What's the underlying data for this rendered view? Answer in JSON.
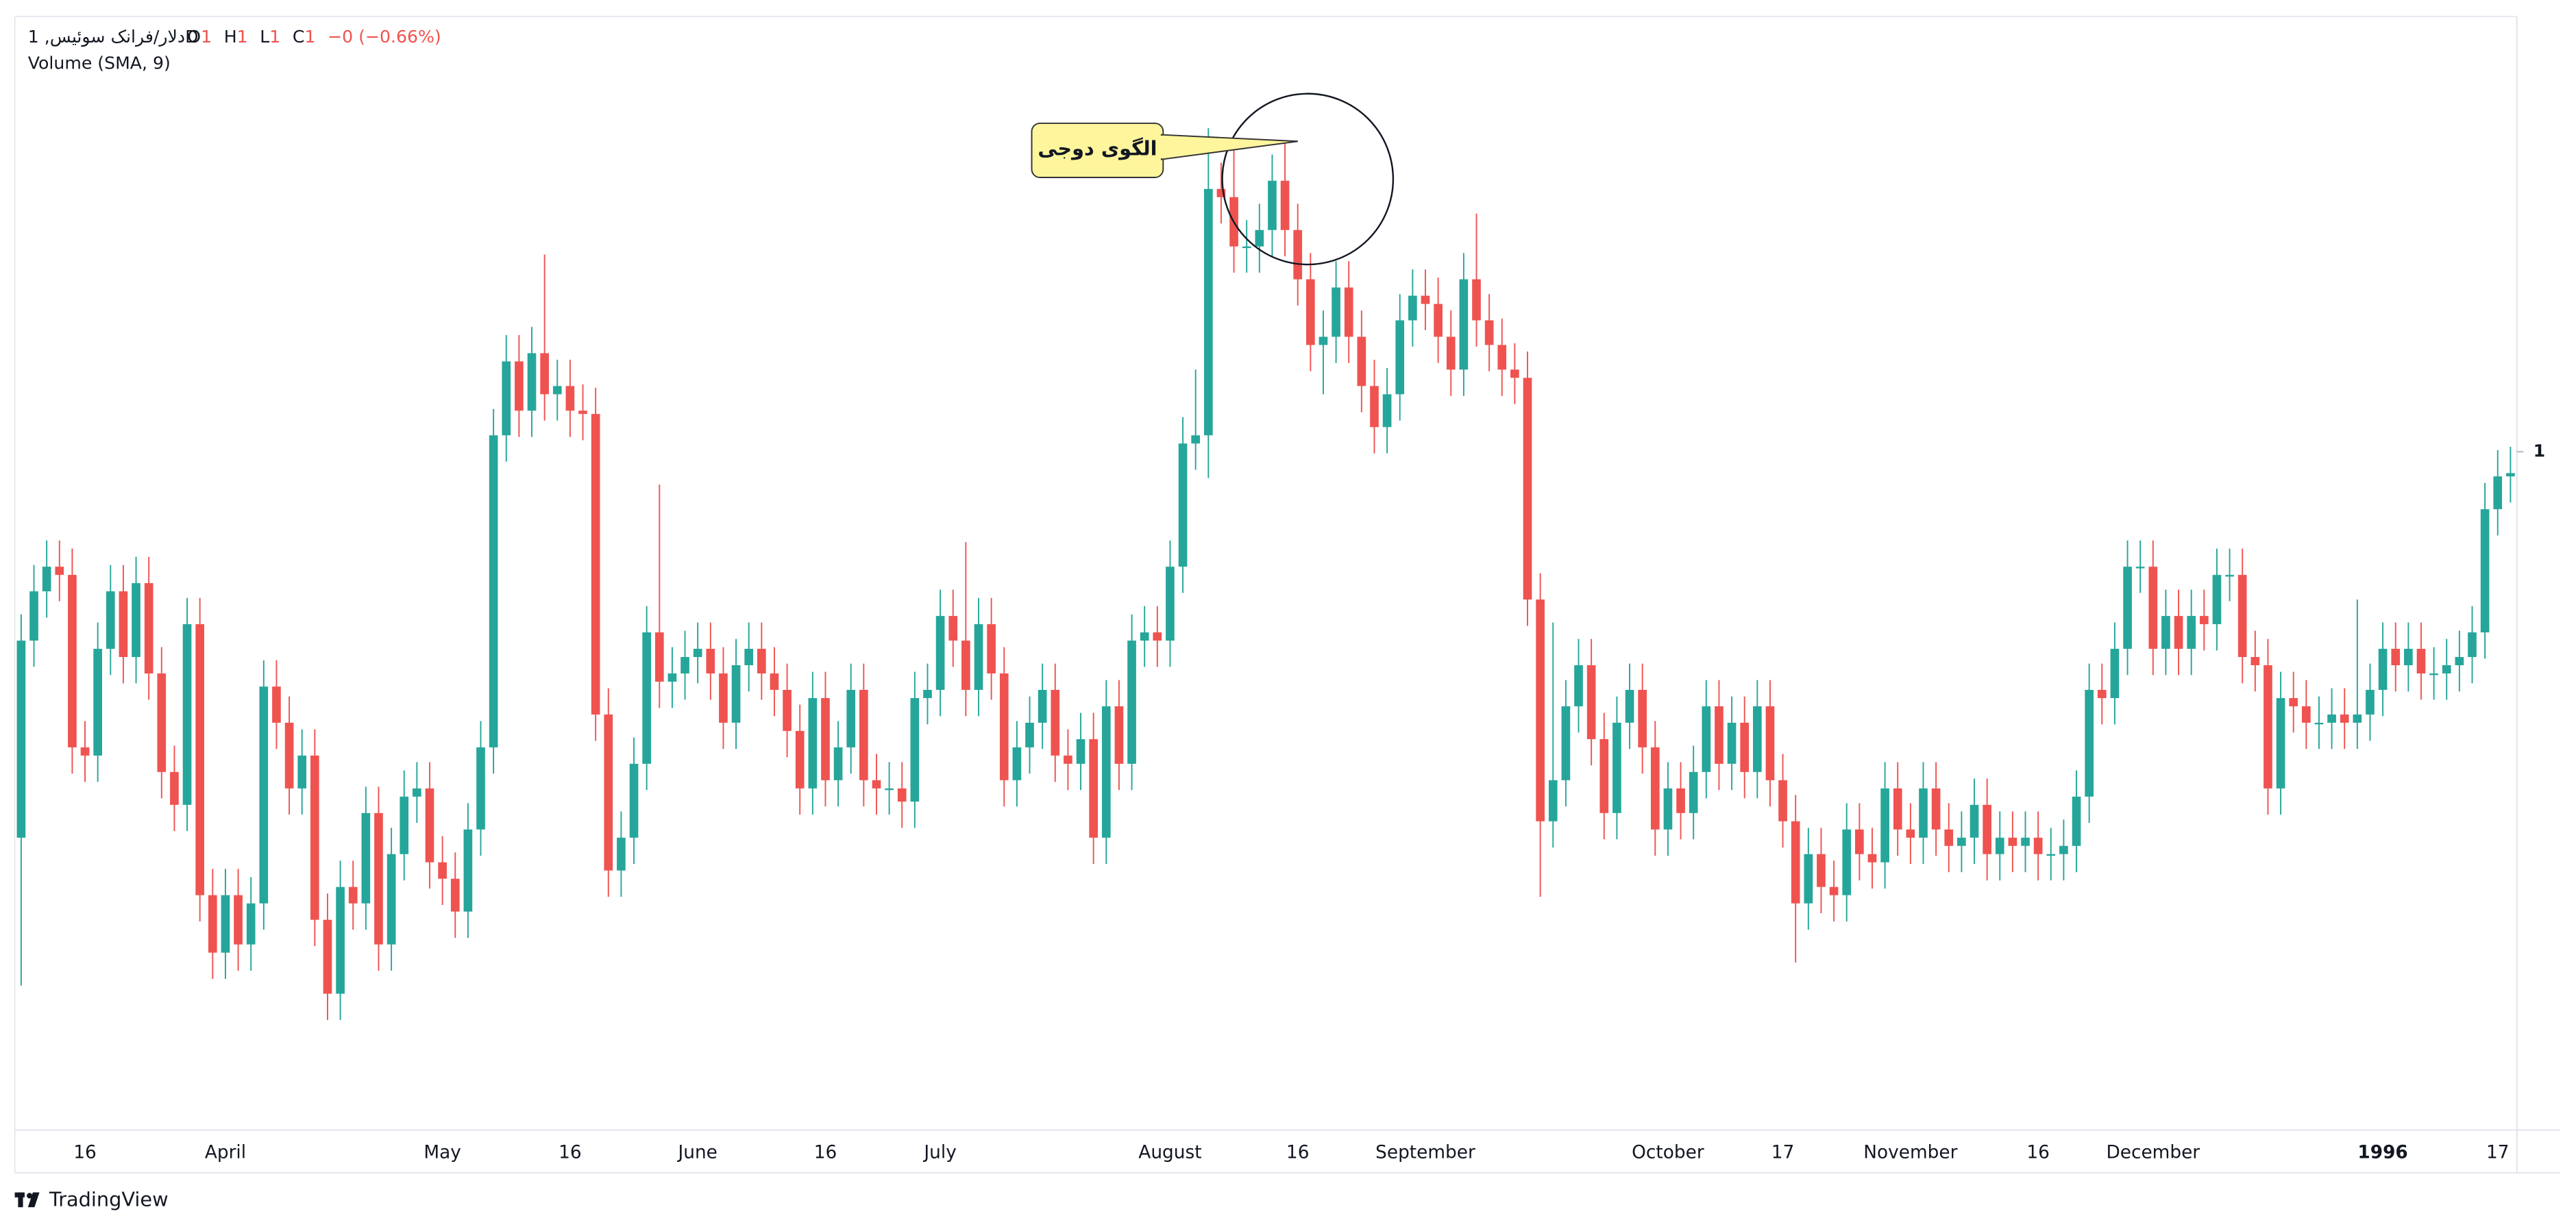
{
  "chart_data": {
    "type": "candlestick",
    "symbol": "دلار/فرانک سوئیس, 1D",
    "ohlc_legend": [
      {
        "key": "O",
        "value": "1"
      },
      {
        "key": "H",
        "value": "1"
      },
      {
        "key": "L",
        "value": "1"
      },
      {
        "key": "C",
        "value": "1"
      }
    ],
    "change": "−0 (−0.66%)",
    "indicator": "Volume (SMA, 9)",
    "annotation": "الگوی دوجی",
    "brand": "TradingView",
    "up_color": "#26a69a",
    "down_color": "#ef5350",
    "ylim": [
      0.7935,
      1.1325
    ],
    "yticks": [
      {
        "value": 1.0,
        "label": "1"
      }
    ],
    "categories": [
      null,
      null,
      null,
      null,
      null,
      "16",
      null,
      null,
      null,
      null,
      null,
      null,
      null,
      null,
      null,
      null,
      "April",
      null,
      null,
      null,
      null,
      null,
      null,
      null,
      null,
      null,
      null,
      null,
      null,
      null,
      null,
      null,
      null,
      "May",
      null,
      null,
      null,
      null,
      null,
      null,
      null,
      null,
      null,
      "16",
      null,
      null,
      null,
      null,
      null,
      null,
      null,
      null,
      null,
      "June",
      null,
      null,
      null,
      null,
      null,
      null,
      null,
      null,
      null,
      "16",
      null,
      null,
      null,
      null,
      null,
      null,
      null,
      null,
      "July",
      null,
      null,
      null,
      null,
      null,
      null,
      null,
      null,
      null,
      null,
      null,
      null,
      null,
      null,
      null,
      null,
      null,
      "August",
      null,
      null,
      null,
      null,
      null,
      null,
      null,
      null,
      null,
      "16",
      null,
      null,
      null,
      null,
      null,
      null,
      null,
      null,
      null,
      "September",
      null,
      null,
      null,
      null,
      null,
      null,
      null,
      null,
      null,
      null,
      null,
      null,
      null,
      null,
      null,
      null,
      null,
      null,
      "October",
      null,
      null,
      null,
      null,
      null,
      null,
      null,
      null,
      "17",
      null,
      null,
      null,
      null,
      null,
      null,
      null,
      null,
      null,
      "November",
      null,
      null,
      null,
      null,
      null,
      null,
      null,
      null,
      null,
      "16",
      null,
      null,
      null,
      null,
      null,
      null,
      null,
      null,
      "December",
      null,
      null,
      null,
      null,
      null,
      null,
      null,
      null,
      null,
      null,
      null,
      null,
      null,
      null,
      null,
      null,
      null,
      "1996",
      null,
      null,
      null,
      null,
      null,
      null,
      null,
      null,
      "17",
      null
    ],
    "open": [
      0.8825,
      0.9425,
      0.9575,
      0.965,
      0.9625,
      0.91,
      0.9075,
      0.94,
      0.9575,
      0.9375,
      0.96,
      0.9325,
      0.9025,
      0.8925,
      0.9475,
      0.865,
      0.8475,
      0.865,
      0.85,
      0.8625,
      0.9285,
      0.9175,
      0.8975,
      0.9075,
      0.8575,
      0.835,
      0.8675,
      0.8625,
      0.89,
      0.85,
      0.8775,
      0.895,
      0.8975,
      0.875,
      0.87,
      0.86,
      0.885,
      0.91,
      1.005,
      1.0275,
      1.0125,
      1.03,
      1.0175,
      1.02,
      1.0125,
      1.0115,
      0.92,
      0.8725,
      0.8825,
      0.905,
      0.945,
      0.93,
      0.9325,
      0.9375,
      0.94,
      0.9325,
      0.9175,
      0.935,
      0.94,
      0.9325,
      0.9275,
      0.915,
      0.8975,
      0.925,
      0.9,
      0.91,
      0.9275,
      0.9,
      0.8975,
      0.8975,
      0.8935,
      0.925,
      0.9275,
      0.95,
      0.9425,
      0.9275,
      0.9475,
      0.9325,
      0.9,
      0.91,
      0.9175,
      0.9275,
      0.9075,
      0.905,
      0.9125,
      0.8825,
      0.9225,
      0.905,
      0.9425,
      0.945,
      0.9425,
      0.965,
      1.0025,
      1.005,
      1.08,
      1.0775,
      1.0625,
      1.0625,
      1.0675,
      1.0825,
      1.0675,
      1.0525,
      1.0325,
      1.035,
      1.05,
      1.035,
      1.02,
      1.0075,
      1.0175,
      1.04,
      1.0475,
      1.045,
      1.035,
      1.025,
      1.0525,
      1.04,
      1.0325,
      1.025,
      1.0225,
      0.955,
      0.8875,
      0.9,
      0.9225,
      0.935,
      0.9125,
      0.89,
      0.9175,
      0.9275,
      0.91,
      0.885,
      0.8975,
      0.89,
      0.9025,
      0.9225,
      0.905,
      0.9175,
      0.9025,
      0.9225,
      0.9,
      0.8875,
      0.8625,
      0.8775,
      0.8675,
      0.865,
      0.885,
      0.8775,
      0.875,
      0.8975,
      0.885,
      0.8825,
      0.8975,
      0.885,
      0.88,
      0.8825,
      0.8925,
      0.8775,
      0.8825,
      0.88,
      0.8825,
      0.8775,
      0.8775,
      0.88,
      0.895,
      0.9275,
      0.925,
      0.94,
      0.965,
      0.965,
      0.94,
      0.95,
      0.94,
      0.95,
      0.9475,
      0.9625,
      0.9625,
      0.9375,
      0.935,
      0.8975,
      0.925,
      0.9225,
      0.9175,
      0.9175,
      0.92,
      0.9175,
      0.92,
      0.9275,
      0.94,
      0.935,
      0.94,
      0.9325,
      0.9325,
      0.935,
      0.9375,
      0.945,
      0.9825,
      0.9925
    ],
    "high": [
      0.9505,
      0.9655,
      0.973,
      0.973,
      0.9705,
      0.918,
      0.948,
      0.9655,
      0.9655,
      0.968,
      0.968,
      0.9405,
      0.9105,
      0.9555,
      0.9555,
      0.873,
      0.873,
      0.873,
      0.8705,
      0.9365,
      0.9365,
      0.9255,
      0.9155,
      0.9155,
      0.8655,
      0.8755,
      0.8755,
      0.898,
      0.898,
      0.8855,
      0.903,
      0.9055,
      0.9055,
      0.883,
      0.878,
      0.893,
      0.918,
      1.013,
      1.0355,
      1.0355,
      1.038,
      1.06,
      1.028,
      1.028,
      1.0205,
      1.0195,
      0.928,
      0.8905,
      0.913,
      0.953,
      0.99,
      0.9405,
      0.9455,
      0.948,
      0.948,
      0.9405,
      0.943,
      0.948,
      0.948,
      0.9405,
      0.9355,
      0.923,
      0.933,
      0.933,
      0.918,
      0.9355,
      0.9355,
      0.908,
      0.9055,
      0.9055,
      0.933,
      0.9355,
      0.958,
      0.958,
      0.9725,
      0.9555,
      0.9555,
      0.9405,
      0.918,
      0.9255,
      0.9355,
      0.9355,
      0.9155,
      0.9205,
      0.9205,
      0.9305,
      0.9305,
      0.9505,
      0.953,
      0.953,
      0.973,
      1.0105,
      1.025,
      1.0985,
      1.088,
      1.0945,
      1.0705,
      1.0755,
      1.0905,
      1.0945,
      1.0755,
      1.0605,
      1.043,
      1.058,
      1.058,
      1.043,
      1.028,
      1.0255,
      1.048,
      1.0555,
      1.0555,
      1.053,
      1.043,
      1.0605,
      1.0725,
      1.048,
      1.0405,
      1.033,
      1.0305,
      0.963,
      0.948,
      0.9305,
      0.943,
      0.943,
      0.9205,
      0.9255,
      0.9355,
      0.9355,
      0.918,
      0.9055,
      0.9055,
      0.9105,
      0.9305,
      0.9305,
      0.9255,
      0.9255,
      0.9305,
      0.9305,
      0.908,
      0.8955,
      0.8855,
      0.8855,
      0.8755,
      0.893,
      0.893,
      0.8855,
      0.9055,
      0.9055,
      0.893,
      0.9055,
      0.9055,
      0.893,
      0.8905,
      0.9005,
      0.9005,
      0.8905,
      0.8905,
      0.8905,
      0.8905,
      0.8855,
      0.888,
      0.903,
      0.9355,
      0.9355,
      0.948,
      0.973,
      0.973,
      0.973,
      0.958,
      0.958,
      0.958,
      0.958,
      0.9705,
      0.9705,
      0.9705,
      0.9455,
      0.943,
      0.933,
      0.933,
      0.9305,
      0.9255,
      0.928,
      0.928,
      0.955,
      0.9355,
      0.948,
      0.948,
      0.948,
      0.948,
      0.9405,
      0.943,
      0.9455,
      0.953,
      0.9905,
      1.0005,
      1.0015
    ],
    "low": [
      0.8375,
      0.9345,
      0.9495,
      0.9545,
      0.902,
      0.8995,
      0.8995,
      0.932,
      0.9295,
      0.9295,
      0.9245,
      0.8945,
      0.8845,
      0.8845,
      0.857,
      0.8395,
      0.8395,
      0.842,
      0.842,
      0.8545,
      0.9095,
      0.8895,
      0.8895,
      0.8495,
      0.827,
      0.827,
      0.8545,
      0.8545,
      0.842,
      0.842,
      0.8695,
      0.887,
      0.867,
      0.862,
      0.852,
      0.852,
      0.877,
      0.902,
      0.997,
      1.0045,
      1.0045,
      1.0095,
      1.0095,
      1.0045,
      1.0035,
      0.912,
      0.8645,
      0.8645,
      0.8745,
      0.897,
      0.922,
      0.922,
      0.9245,
      0.9295,
      0.9245,
      0.9095,
      0.9095,
      0.927,
      0.9245,
      0.9195,
      0.907,
      0.8895,
      0.8895,
      0.892,
      0.892,
      0.902,
      0.892,
      0.8895,
      0.8895,
      0.8855,
      0.8855,
      0.917,
      0.9195,
      0.9345,
      0.9195,
      0.9195,
      0.9245,
      0.892,
      0.892,
      0.902,
      0.9095,
      0.8995,
      0.897,
      0.897,
      0.8745,
      0.8745,
      0.897,
      0.897,
      0.9345,
      0.9345,
      0.9345,
      0.957,
      0.9945,
      0.992,
      1.0695,
      1.0545,
      1.0545,
      1.0545,
      1.0595,
      1.0595,
      1.0445,
      1.0245,
      1.0175,
      1.027,
      1.027,
      1.012,
      0.9995,
      0.9995,
      1.0095,
      1.032,
      1.037,
      1.027,
      1.017,
      1.017,
      1.032,
      1.0245,
      1.017,
      1.0145,
      0.947,
      0.8645,
      0.8795,
      0.892,
      0.9145,
      0.9045,
      0.882,
      0.882,
      0.9095,
      0.902,
      0.877,
      0.877,
      0.882,
      0.882,
      0.8945,
      0.897,
      0.897,
      0.8945,
      0.8945,
      0.892,
      0.8795,
      0.8445,
      0.8545,
      0.8595,
      0.857,
      0.857,
      0.8695,
      0.867,
      0.867,
      0.877,
      0.8745,
      0.8745,
      0.877,
      0.872,
      0.872,
      0.8745,
      0.8695,
      0.8695,
      0.872,
      0.872,
      0.8695,
      0.8695,
      0.8695,
      0.872,
      0.887,
      0.917,
      0.917,
      0.932,
      0.957,
      0.932,
      0.932,
      0.932,
      0.932,
      0.9395,
      0.9395,
      0.9545,
      0.9295,
      0.927,
      0.8895,
      0.8895,
      0.9145,
      0.9095,
      0.9095,
      0.9095,
      0.9095,
      0.9095,
      0.912,
      0.9195,
      0.927,
      0.927,
      0.9245,
      0.9245,
      0.9245,
      0.927,
      0.9295,
      0.937,
      0.9745,
      0.9845
    ],
    "close": [
      0.9425,
      0.9575,
      0.965,
      0.9625,
      0.91,
      0.9075,
      0.94,
      0.9575,
      0.9375,
      0.96,
      0.9325,
      0.9025,
      0.8925,
      0.9475,
      0.865,
      0.8475,
      0.865,
      0.85,
      0.8625,
      0.9285,
      0.9175,
      0.8975,
      0.9075,
      0.8575,
      0.835,
      0.8675,
      0.8625,
      0.89,
      0.85,
      0.8775,
      0.895,
      0.8975,
      0.875,
      0.87,
      0.86,
      0.885,
      0.91,
      1.005,
      1.0275,
      1.0125,
      1.03,
      1.0175,
      1.02,
      1.0125,
      1.0115,
      0.92,
      0.8725,
      0.8825,
      0.905,
      0.945,
      0.93,
      0.9325,
      0.9375,
      0.94,
      0.9325,
      0.9175,
      0.935,
      0.94,
      0.9325,
      0.9275,
      0.915,
      0.8975,
      0.925,
      0.9,
      0.91,
      0.9275,
      0.9,
      0.8975,
      0.8975,
      0.8935,
      0.925,
      0.9275,
      0.95,
      0.9425,
      0.9275,
      0.9475,
      0.9325,
      0.9,
      0.91,
      0.9175,
      0.9275,
      0.9075,
      0.905,
      0.9125,
      0.8825,
      0.9225,
      0.905,
      0.9425,
      0.945,
      0.9425,
      0.965,
      1.0025,
      1.005,
      1.08,
      1.0775,
      1.0625,
      1.0625,
      1.0675,
      1.0825,
      1.0675,
      1.0525,
      1.0325,
      1.035,
      1.05,
      1.035,
      1.02,
      1.0075,
      1.0175,
      1.04,
      1.0475,
      1.045,
      1.035,
      1.025,
      1.0525,
      1.04,
      1.0325,
      1.025,
      1.0225,
      0.955,
      0.8875,
      0.9,
      0.9225,
      0.935,
      0.9125,
      0.89,
      0.9175,
      0.9275,
      0.91,
      0.885,
      0.8975,
      0.89,
      0.9025,
      0.9225,
      0.905,
      0.9175,
      0.9025,
      0.9225,
      0.9,
      0.8875,
      0.8625,
      0.8775,
      0.8675,
      0.865,
      0.885,
      0.8775,
      0.875,
      0.8975,
      0.885,
      0.8825,
      0.8975,
      0.885,
      0.88,
      0.8825,
      0.8925,
      0.8775,
      0.8825,
      0.88,
      0.8825,
      0.8775,
      0.8775,
      0.88,
      0.895,
      0.9275,
      0.925,
      0.94,
      0.965,
      0.965,
      0.94,
      0.95,
      0.94,
      0.95,
      0.9475,
      0.9625,
      0.9625,
      0.9375,
      0.935,
      0.8975,
      0.925,
      0.9225,
      0.9175,
      0.9175,
      0.92,
      0.9175,
      0.92,
      0.9275,
      0.94,
      0.935,
      0.94,
      0.9325,
      0.9325,
      0.935,
      0.9375,
      0.945,
      0.9825,
      0.9925,
      0.9935
    ]
  }
}
